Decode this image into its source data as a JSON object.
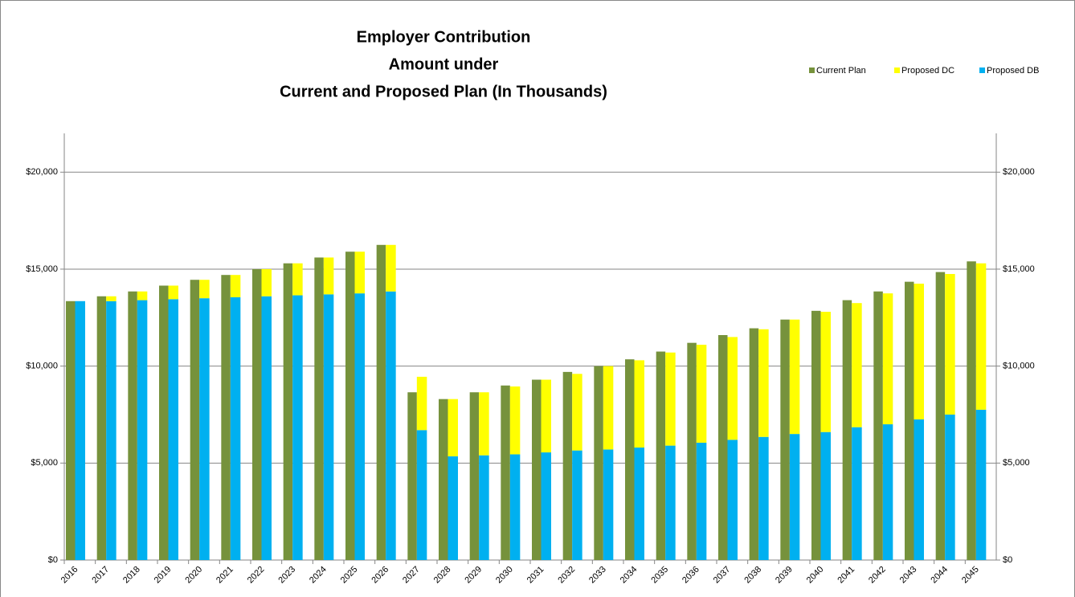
{
  "chart_data": {
    "type": "bar",
    "title": [
      "Employer Contribution",
      "Amount under",
      "Current and Proposed Plan (In Thousands)"
    ],
    "categories": [
      "2016",
      "2017",
      "2018",
      "2019",
      "2020",
      "2021",
      "2022",
      "2023",
      "2024",
      "2025",
      "2026",
      "2027",
      "2028",
      "2029",
      "2030",
      "2031",
      "2032",
      "2033",
      "2034",
      "2035",
      "2036",
      "2037",
      "2038",
      "2039",
      "2040",
      "2041",
      "2042",
      "2043",
      "2044",
      "2045"
    ],
    "series": [
      {
        "name": "Current Plan",
        "color": "#76923c",
        "values": [
          13350,
          13600,
          13850,
          14150,
          14450,
          14700,
          15000,
          15300,
          15600,
          15900,
          16250,
          8650,
          8300,
          8650,
          9000,
          9300,
          9700,
          10000,
          10350,
          10750,
          11200,
          11600,
          11950,
          12400,
          12850,
          13400,
          13850,
          14350,
          14850,
          15400
        ]
      },
      {
        "name": "Proposed DC",
        "color": "#ffff00",
        "values": [
          0,
          250,
          450,
          700,
          950,
          1150,
          1400,
          1650,
          1900,
          2150,
          2400,
          2750,
          2950,
          3250,
          3500,
          3750,
          3950,
          4300,
          4500,
          4800,
          5050,
          5300,
          5550,
          5900,
          6200,
          6400,
          6750,
          7000,
          7250,
          7550
        ]
      },
      {
        "name": "Proposed DB",
        "color": "#00b0f0",
        "values": [
          13350,
          13350,
          13400,
          13450,
          13500,
          13550,
          13600,
          13650,
          13700,
          13750,
          13850,
          6700,
          5350,
          5400,
          5450,
          5550,
          5650,
          5700,
          5800,
          5900,
          6050,
          6200,
          6350,
          6500,
          6600,
          6850,
          7000,
          7250,
          7500,
          7750
        ]
      }
    ],
    "ylim": [
      0,
      22000
    ],
    "yticks": [
      {
        "value": 0,
        "label": "$0"
      },
      {
        "value": 5000,
        "label": "$5,000"
      },
      {
        "value": 10000,
        "label": "$10,000"
      },
      {
        "value": 15000,
        "label": "$15,000"
      },
      {
        "value": 20000,
        "label": "$20,000"
      }
    ],
    "y2lim": [
      0,
      22000
    ],
    "y2ticks": [
      {
        "value": 0,
        "label": "$0"
      },
      {
        "value": 5000,
        "label": "$5,000"
      },
      {
        "value": 10000,
        "label": "$10,000"
      },
      {
        "value": 15000,
        "label": "$15,000"
      },
      {
        "value": 20000,
        "label": "$20,000"
      }
    ],
    "grid": true,
    "legend": "top-right"
  }
}
